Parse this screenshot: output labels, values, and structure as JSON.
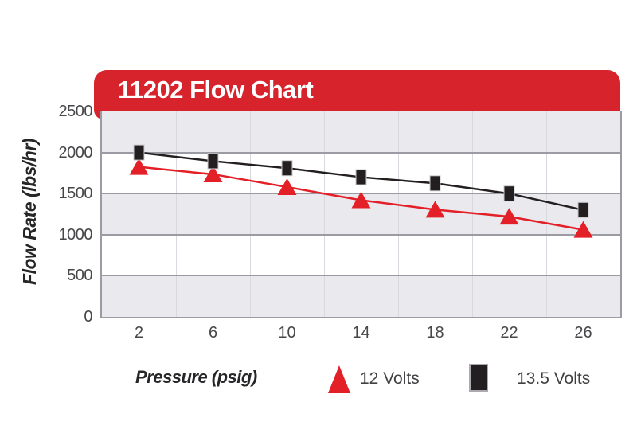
{
  "banner": {
    "color": "#d7232b"
  },
  "chart_data": {
    "type": "line",
    "title": "11202 Flow Chart",
    "xlabel": "Pressure (psig)",
    "ylabel": "Flow Rate (lbs/hr)",
    "x": [
      2,
      6,
      10,
      14,
      18,
      22,
      26
    ],
    "x_ticks": [
      "2",
      "6",
      "10",
      "14",
      "18",
      "22",
      "26"
    ],
    "y_ticks": [
      "2500",
      "2000",
      "1500",
      "1000",
      "500",
      "0"
    ],
    "ylim": [
      0,
      2500
    ],
    "y_step": 500,
    "legend_position": "bottom",
    "grid": {
      "h_gridlines": true,
      "v_gridlines": "between categories",
      "alternating_bands": true,
      "band_color": "#e9e9ee",
      "hgrid_color": "#9b9ca3",
      "vgrid_color": "#d8d9df"
    },
    "series": [
      {
        "name": "12 Volts",
        "marker": "triangle",
        "color": "#e31f28",
        "values": [
          1825,
          1735,
          1580,
          1420,
          1305,
          1220,
          1060
        ]
      },
      {
        "name": "13.5 Volts",
        "marker": "square",
        "color": "#231f20",
        "values": [
          2000,
          1895,
          1810,
          1700,
          1625,
          1500,
          1300
        ]
      }
    ]
  }
}
